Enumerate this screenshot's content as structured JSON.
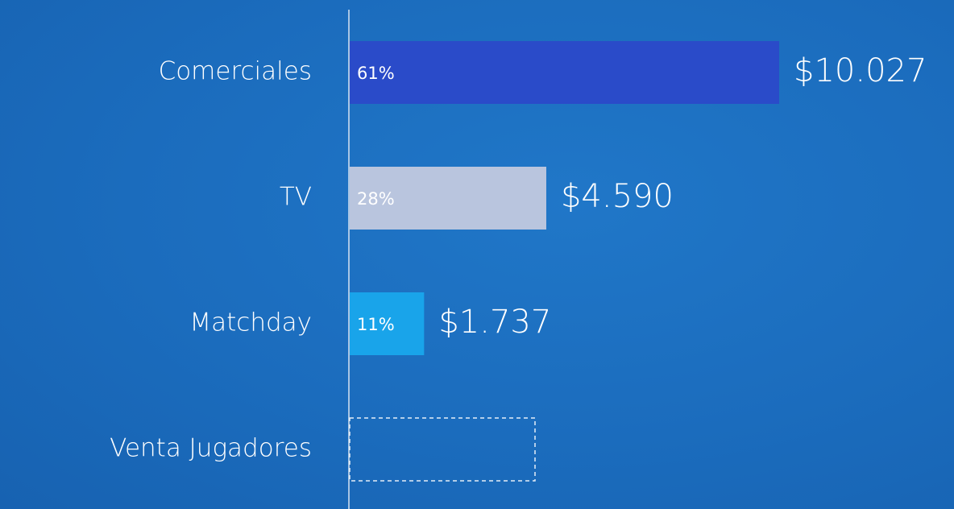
{
  "chart_data": {
    "type": "hbar",
    "categories": [
      "Comerciales",
      "TV",
      "Matchday",
      "Venta Jugadores"
    ],
    "values": [
      10027,
      4590,
      1737,
      null
    ],
    "value_labels": [
      "$10.027",
      "$4.590",
      "$1.737",
      null
    ],
    "share_labels": [
      "61%",
      "28%",
      "11%",
      null
    ],
    "colors": [
      "#2a4bc9",
      "#b9c5de",
      "#19a4ea",
      null
    ]
  }
}
